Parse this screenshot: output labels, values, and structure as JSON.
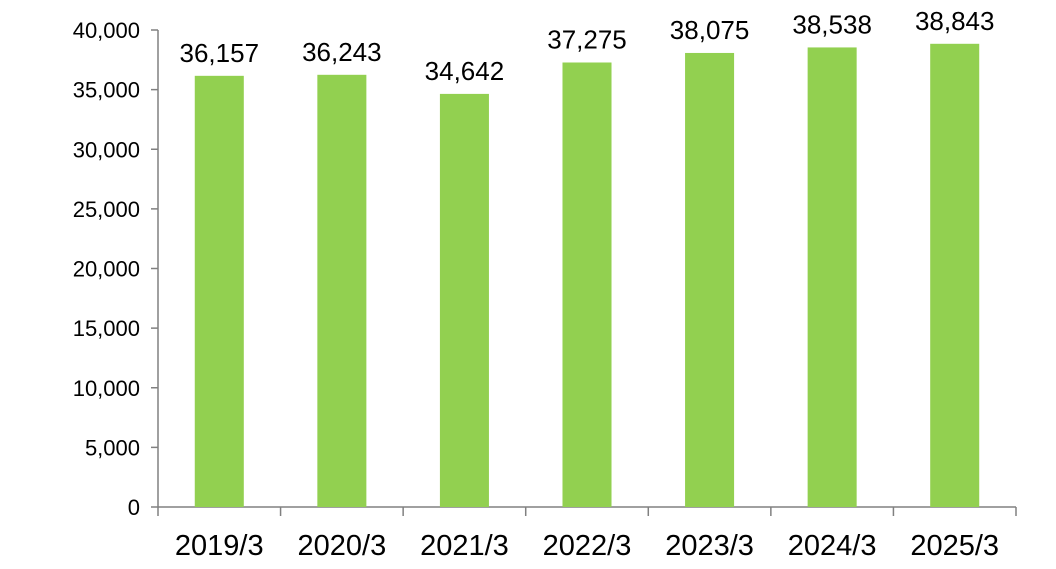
{
  "chart_data": {
    "type": "bar",
    "title": "",
    "xlabel": "",
    "ylabel": "",
    "categories": [
      "2019/3",
      "2020/3",
      "2021/3",
      "2022/3",
      "2023/3",
      "2024/3",
      "2025/3"
    ],
    "values": [
      36157,
      36243,
      34642,
      37275,
      38075,
      38538,
      38843
    ],
    "data_labels": [
      "36,157",
      "36,243",
      "34,642",
      "37,275",
      "38,075",
      "38,538",
      "38,843"
    ],
    "ylim": [
      0,
      40000
    ],
    "yticks": [
      0,
      5000,
      10000,
      15000,
      20000,
      25000,
      30000,
      35000,
      40000
    ],
    "ytick_labels": [
      "0",
      "5,000",
      "10,000",
      "15,000",
      "20,000",
      "25,000",
      "30,000",
      "35,000",
      "40,000"
    ],
    "grid": false,
    "legend": "none",
    "bar_color": "#92D050",
    "axis_color": "#808080"
  }
}
